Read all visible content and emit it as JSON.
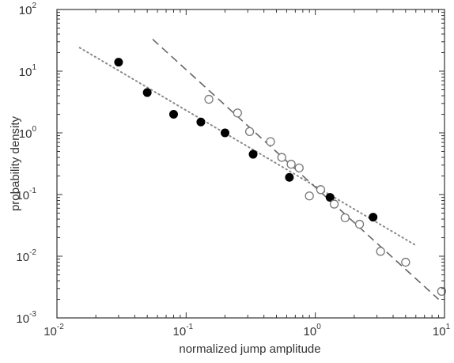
{
  "chart_data": {
    "type": "scatter",
    "title": "",
    "xlabel": "normalized jump amplitude",
    "ylabel": "probability density",
    "xscale": "log",
    "yscale": "log",
    "xlim": [
      0.01,
      10
    ],
    "ylim": [
      0.001,
      100
    ],
    "x_ticks": [
      {
        "value": 0.01,
        "base": "10",
        "exp": "-2"
      },
      {
        "value": 0.1,
        "base": "10",
        "exp": "-1"
      },
      {
        "value": 1,
        "base": "10",
        "exp": "0"
      },
      {
        "value": 10,
        "base": "10",
        "exp": "1"
      }
    ],
    "y_ticks": [
      {
        "value": 0.001,
        "base": "10",
        "exp": "-3"
      },
      {
        "value": 0.01,
        "base": "10",
        "exp": "-2"
      },
      {
        "value": 0.1,
        "base": "10",
        "exp": "-1"
      },
      {
        "value": 1,
        "base": "10",
        "exp": "0"
      },
      {
        "value": 10,
        "base": "10",
        "exp": "1"
      },
      {
        "value": 100,
        "base": "10",
        "exp": "2"
      }
    ],
    "grid": false,
    "series": [
      {
        "marker": "filled-circle",
        "color": "#000000",
        "points": [
          [
            0.03,
            14
          ],
          [
            0.05,
            4.5
          ],
          [
            0.08,
            2.0
          ],
          [
            0.13,
            1.5
          ],
          [
            0.2,
            1.0
          ],
          [
            0.33,
            0.45
          ],
          [
            0.63,
            0.19
          ],
          [
            1.3,
            0.09
          ],
          [
            2.8,
            0.043
          ]
        ]
      },
      {
        "marker": "open-circle",
        "color": "#777777",
        "points": [
          [
            0.15,
            3.5
          ],
          [
            0.25,
            2.1
          ],
          [
            0.31,
            1.05
          ],
          [
            0.45,
            0.72
          ],
          [
            0.55,
            0.4
          ],
          [
            0.65,
            0.31
          ],
          [
            0.75,
            0.27
          ],
          [
            0.9,
            0.095
          ],
          [
            1.1,
            0.12
          ],
          [
            1.4,
            0.07
          ],
          [
            1.7,
            0.042
          ],
          [
            2.2,
            0.033
          ],
          [
            3.2,
            0.012
          ],
          [
            5.0,
            0.008
          ],
          [
            9.5,
            0.0027
          ]
        ]
      }
    ],
    "fit_lines": [
      {
        "style": "dotted",
        "color": "#8a8a8a",
        "x": [
          0.015,
          6.0
        ],
        "y": [
          24,
          0.015
        ]
      },
      {
        "style": "dashed",
        "color": "#666666",
        "x": [
          0.055,
          9.0
        ],
        "y": [
          33,
          0.002
        ]
      }
    ]
  }
}
